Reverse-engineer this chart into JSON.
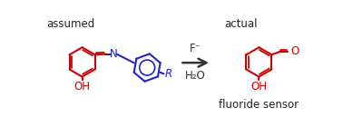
{
  "background_color": "#ffffff",
  "assumed_label": "assumed",
  "actual_label": "actual",
  "fluoride_sensor_label": "fluoride sensor",
  "arrow_label_top": "F⁻",
  "arrow_label_bottom": "H₂O",
  "red_color": "#cc0000",
  "blue_color": "#2222cc",
  "black_color": "#333333",
  "text_color": "#222222",
  "label_fontsize": 8.5,
  "chem_fontsize": 8.5,
  "lw": 1.5
}
